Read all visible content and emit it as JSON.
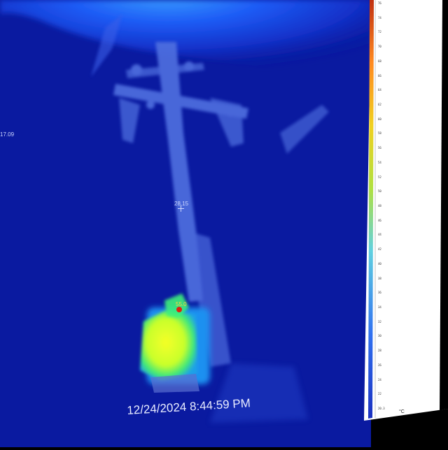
{
  "timestamp": "12/24/2024 8:44:59 PM",
  "readouts": {
    "left_edge": "17.09",
    "center_spot": "28.15",
    "hot_spot": "55.0"
  },
  "scale": {
    "unit": "°C",
    "labels": [
      "76",
      "74",
      "72",
      "70",
      "68",
      "66",
      "64",
      "62",
      "60",
      "58",
      "56",
      "54",
      "52",
      "50",
      "48",
      "46",
      "44",
      "42",
      "40",
      "38",
      "36",
      "34",
      "32",
      "30",
      "28",
      "26",
      "24",
      "22",
      "20.3"
    ]
  },
  "colors": {
    "background": "#0a1aa0",
    "sky_glow": "#1e5cf6",
    "structure": "#4f6fe0",
    "hot_core": "#e0ff20",
    "hot_mid": "#3cf07a",
    "hot_peak": "#e02010"
  }
}
